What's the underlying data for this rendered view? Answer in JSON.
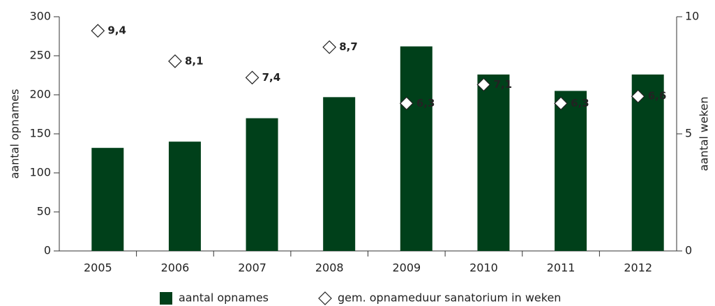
{
  "chart_data": {
    "type": "bar",
    "categories": [
      "2005",
      "2006",
      "2007",
      "2008",
      "2009",
      "2010",
      "2011",
      "2012"
    ],
    "series": [
      {
        "name": "aantal opnames",
        "color": "#00401a",
        "values": [
          132,
          140,
          170,
          197,
          262,
          226,
          205,
          226
        ]
      },
      {
        "name": "gem. opnameduur sanatorium in weken",
        "axis": "y2",
        "values": [
          9.4,
          8.1,
          7.4,
          8.7,
          6.3,
          7.1,
          6.3,
          6.6
        ],
        "value_labels": [
          "9,4",
          "8,1",
          "7,4",
          "8,7",
          "6,3",
          "7,1",
          "6,3",
          "6,6"
        ]
      }
    ],
    "ylabel": "aantal opnames",
    "y2label": "aantal weken",
    "ylim": [
      0,
      300
    ],
    "yticks": [
      0,
      50,
      100,
      150,
      200,
      250,
      300
    ],
    "y2lim": [
      0,
      10
    ],
    "y2ticks": [
      0,
      5,
      10
    ]
  }
}
